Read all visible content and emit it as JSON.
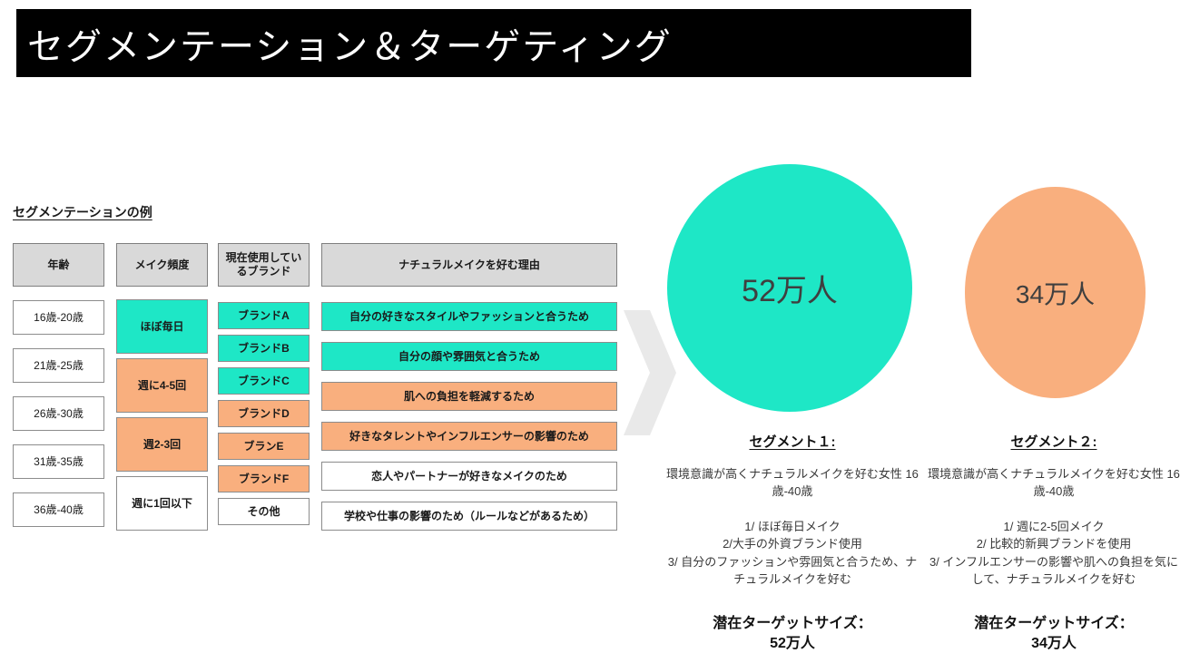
{
  "palette": {
    "teal": "#1ee7c6",
    "orange": "#f9af7e",
    "header_gray": "#d9d9d9",
    "banner_black": "#000000",
    "arrow_gray": "#e9e9e9"
  },
  "banner": {
    "title": "セグメンテーション＆ターゲティング"
  },
  "table": {
    "heading": "セグメンテーションの例",
    "columns": [
      {
        "header": "年齢",
        "cells": [
          {
            "label": "16歳-20歳",
            "color": "white"
          },
          {
            "label": "21歳-25歳",
            "color": "white"
          },
          {
            "label": "26歳-30歳",
            "color": "white"
          },
          {
            "label": "31歳-35歳",
            "color": "white"
          },
          {
            "label": "36歳-40歳",
            "color": "white"
          }
        ]
      },
      {
        "header": "メイク頻度",
        "cells": [
          {
            "label": "ほぼ毎日",
            "color": "teal"
          },
          {
            "label": "週に4-5回",
            "color": "orange"
          },
          {
            "label": "週2-3回",
            "color": "orange"
          },
          {
            "label": "週に1回以下",
            "color": "white"
          }
        ]
      },
      {
        "header": "現在使用しているブランド",
        "cells": [
          {
            "label": "ブランドA",
            "color": "teal"
          },
          {
            "label": "ブランドB",
            "color": "teal"
          },
          {
            "label": "ブランドC",
            "color": "teal"
          },
          {
            "label": "ブランドD",
            "color": "orange"
          },
          {
            "label": "ブランE",
            "color": "orange"
          },
          {
            "label": "ブランドF",
            "color": "orange"
          },
          {
            "label": "その他",
            "color": "white"
          }
        ]
      },
      {
        "header": "ナチュラルメイクを好む理由",
        "cells": [
          {
            "label": "自分の好きなスタイルやファッションと合うため",
            "color": "teal"
          },
          {
            "label": "自分の顔や雰囲気と合うため",
            "color": "teal"
          },
          {
            "label": "肌への負担を軽減するため",
            "color": "orange"
          },
          {
            "label": "好きなタレントやインフルエンサーの影響のため",
            "color": "orange"
          },
          {
            "label": "恋人やパートナーが好きなメイクのため",
            "color": "white"
          },
          {
            "label": "学校や仕事の影響のため（ルールなどがあるため）",
            "color": "white"
          }
        ]
      }
    ]
  },
  "segments": [
    {
      "circle_value": "52万人",
      "circle_color": "teal",
      "title": "セグメント１:",
      "description": "環境意識が高くナチュラルメイクを好む女性 16歳-40歳",
      "points": [
        "1/ ほぼ毎日メイク",
        "2/大手の外資ブランド使用",
        "3/ 自分のファッションや雰囲気と合うため、ナチュラルメイクを好む"
      ],
      "target_label": "潜在ターゲットサイズ：",
      "target_value": "52万人"
    },
    {
      "circle_value": "34万人",
      "circle_color": "orange",
      "title": "セグメント２:",
      "description": "環境意識が高くナチュラルメイクを好む女性 16歳-40歳",
      "points": [
        "1/ 週に2-5回メイク",
        "2/ 比較的新興ブランドを使用",
        "3/ インフルエンサーの影響や肌への負担を気にして、ナチュラルメイクを好む"
      ],
      "target_label": "潜在ターゲットサイズ：",
      "target_value": "34万人"
    }
  ]
}
